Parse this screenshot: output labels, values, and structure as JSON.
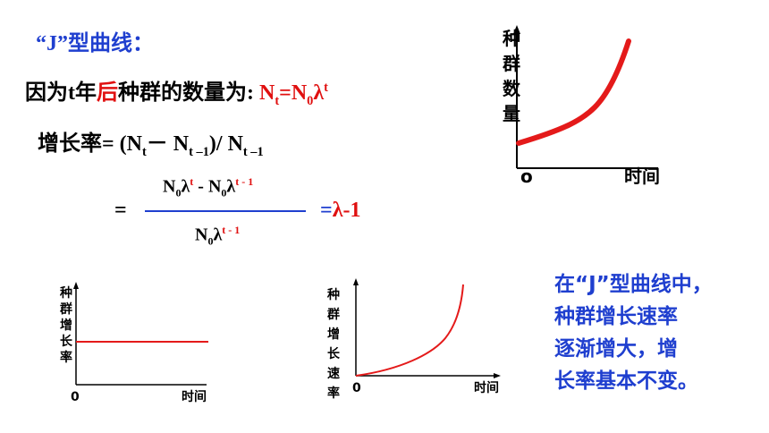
{
  "title": "“J”型曲线：",
  "line1": {
    "prefix": "因为t年",
    "highlight": "后",
    "suffix": "种群的数量为:",
    "formula_N": "N",
    "formula_t": "t",
    "formula_eq": "=N",
    "formula_0": "0",
    "formula_lambda": "λ",
    "formula_sup": "t"
  },
  "line2": {
    "text": "增长率= (N",
    "sub1": "t",
    "mid": "－ N",
    "sub2": "t –1",
    "end": ")/ N",
    "sub3": "t –1"
  },
  "fraction": {
    "equals": "=",
    "num_N": "N",
    "num_0": "0",
    "num_l": "λ",
    "num_sup1": "t",
    "num_minus": "-  N",
    "num_0b": "0",
    "num_lb": "λ",
    "num_sup2": "t - 1",
    "den_N": "N",
    "den_0": "0",
    "den_l": "λ",
    "den_sup": "t - 1",
    "res_eq": "=",
    "res_val": "λ-1"
  },
  "top_chart": {
    "y_label_chars": [
      "种",
      "群",
      "数",
      "量"
    ],
    "origin": "o",
    "x_label": "时间",
    "curve_color": "#e41a1a"
  },
  "left_chart": {
    "y_label_chars": [
      "种",
      "群",
      "增",
      "长",
      "率"
    ],
    "origin": "0",
    "x_label": "时间",
    "line_color": "#e41a1a"
  },
  "mid_chart": {
    "y_label_chars": [
      "种",
      "群",
      "增",
      "长",
      "速",
      "率"
    ],
    "origin": "0",
    "x_label": "时间",
    "curve_color": "#e41a1a"
  },
  "note": [
    "在“J”型曲线中，",
    "种群增长速率",
    "逐渐增大，增",
    "长率基本不变。"
  ]
}
